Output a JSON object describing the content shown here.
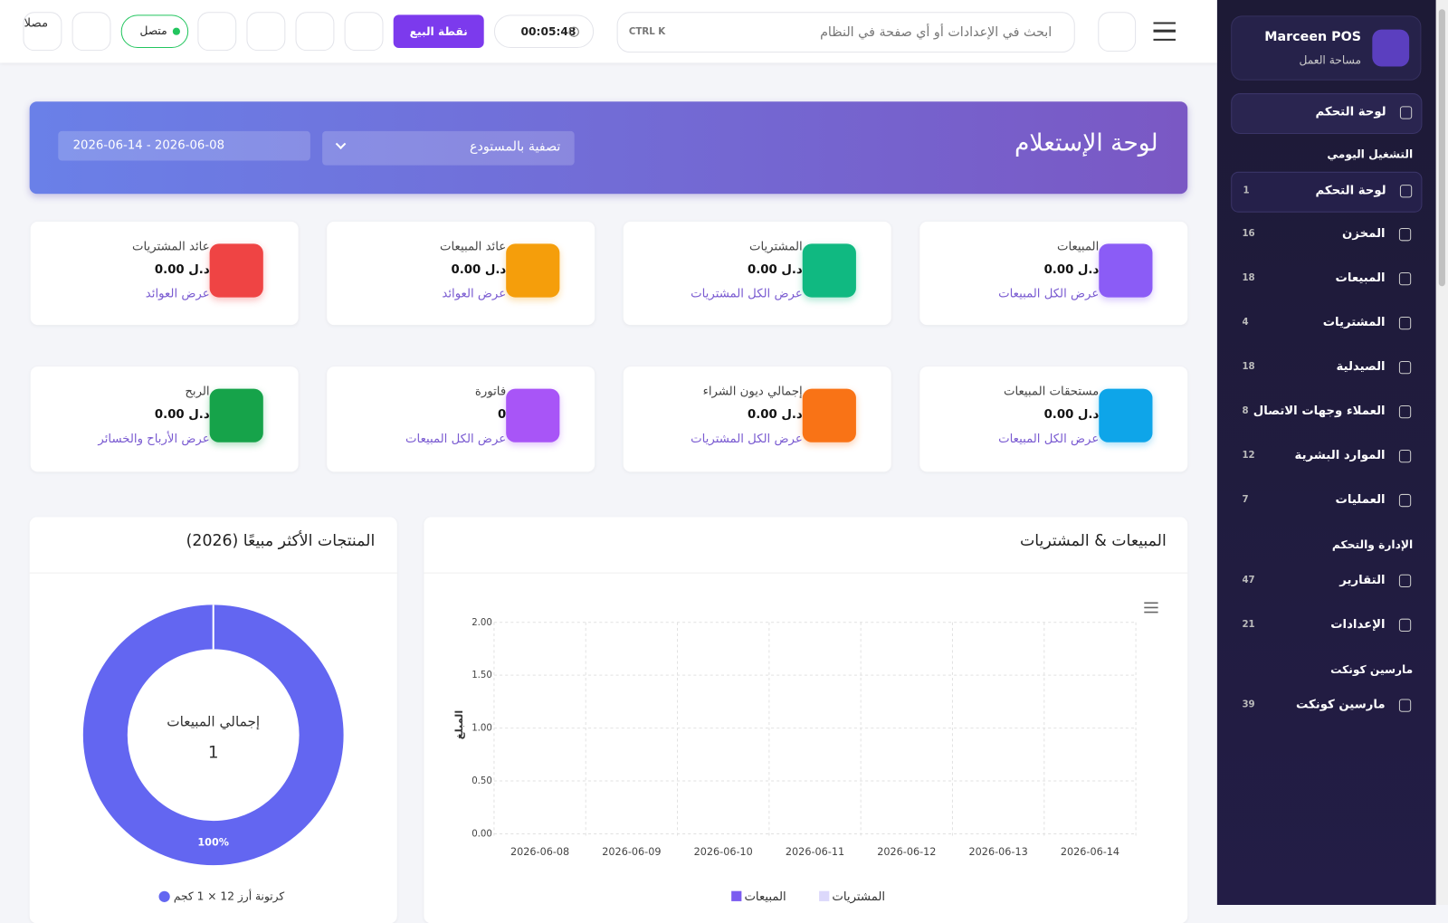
{
  "topbar": {
    "search_placeholder": "ابحث في الإعدادات أو أي صفحة في النظام",
    "shortcut": "CTRL K",
    "timer": "00:05:48",
    "pos_button": "نقطة البيع",
    "status": "متصل",
    "logo_alt": "مصلا"
  },
  "sidebar": {
    "brand": "Marceen POS",
    "workspace": "مساحة العمل",
    "pinned": "لوحة التحكم",
    "sections": [
      {
        "title": "التشغيل اليومي",
        "items": [
          {
            "label": "لوحة التحكم",
            "count": 1
          },
          {
            "label": "المخزن",
            "count": 16
          },
          {
            "label": "المبيعات",
            "count": 18
          },
          {
            "label": "المشتريات",
            "count": 4
          },
          {
            "label": "الصيدلية",
            "count": 18
          },
          {
            "label": "العملاء وجهات الاتصال",
            "count": 8
          },
          {
            "label": "الموارد البشرية",
            "count": 12
          },
          {
            "label": "العمليات",
            "count": 7
          }
        ]
      },
      {
        "title": "الإدارة والتحكم",
        "items": [
          {
            "label": "التقارير",
            "count": 47
          },
          {
            "label": "الإعدادات",
            "count": 21
          }
        ]
      },
      {
        "title": "مارسين كونكت",
        "items": [
          {
            "label": "مارسين كونكت",
            "count": 39
          }
        ]
      }
    ]
  },
  "banner": {
    "title": "لوحة الإستعلام",
    "warehouse_filter": "تصفية بالمستودع",
    "date_range": "2026-06-14 - 2026-06-08"
  },
  "cards": [
    {
      "title": "المبيعات",
      "value": "د.ل 0.00",
      "link": "عرض الكل المبيعات",
      "color": "#8b5cf6"
    },
    {
      "title": "المشتريات",
      "value": "د.ل 0.00",
      "link": "عرض الكل المشتريات",
      "color": "#10b981"
    },
    {
      "title": "عائد المبيعات",
      "value": "د.ل 0.00",
      "link": "عرض العوائد",
      "color": "#f59e0b"
    },
    {
      "title": "عائد المشتريات",
      "value": "د.ل 0.00",
      "link": "عرض العوائد",
      "color": "#ef4444"
    },
    {
      "title": "مستحقات المبيعات",
      "value": "د.ل 0.00",
      "link": "عرض الكل المبيعات",
      "color": "#0ea5e9"
    },
    {
      "title": "إجمالي ديون الشراء",
      "value": "د.ل 0.00",
      "link": "عرض الكل المشتريات",
      "color": "#f97316"
    },
    {
      "title": "فاتورة",
      "value": "0",
      "link": "عرض الكل المبيعات",
      "color": "#a855f7"
    },
    {
      "title": "الربح",
      "value": "د.ل 0.00",
      "link": "عرض الأرباح والخسائر",
      "color": "#16a34a"
    }
  ],
  "chart_data": [
    {
      "type": "bar",
      "title": "المبيعات & المشتريات",
      "y_label": "المبلغ",
      "categories": [
        "2026-06-08",
        "2026-06-09",
        "2026-06-10",
        "2026-06-11",
        "2026-06-12",
        "2026-06-13",
        "2026-06-14"
      ],
      "series": [
        {
          "name": "المبيعات",
          "color": "#7c5cf0",
          "values": [
            0,
            0,
            0,
            0,
            0,
            0,
            0
          ]
        },
        {
          "name": "المشتريات",
          "color": "#dcd8fb",
          "values": [
            0,
            0,
            0,
            0,
            0,
            0,
            0
          ]
        }
      ],
      "ylim": [
        0,
        2
      ],
      "yticks": [
        {
          "value": 0,
          "label": "0.00"
        },
        {
          "value": 0.5,
          "label": "0.50"
        },
        {
          "value": 1,
          "label": "1.00"
        },
        {
          "value": 1.5,
          "label": "1.50"
        },
        {
          "value": 2,
          "label": "2.00"
        }
      ],
      "grid": true
    },
    {
      "type": "donut",
      "title": "المنتجات الأكثر مبيعًا (2026)",
      "center_label": "إجمالي المبيعات",
      "center_value": 1,
      "categories": [
        "كرتونة أرز 12 × 1 كجم"
      ],
      "values": [
        100
      ],
      "value_labels": [
        "100%"
      ],
      "colors": [
        "#6366f1"
      ]
    }
  ]
}
